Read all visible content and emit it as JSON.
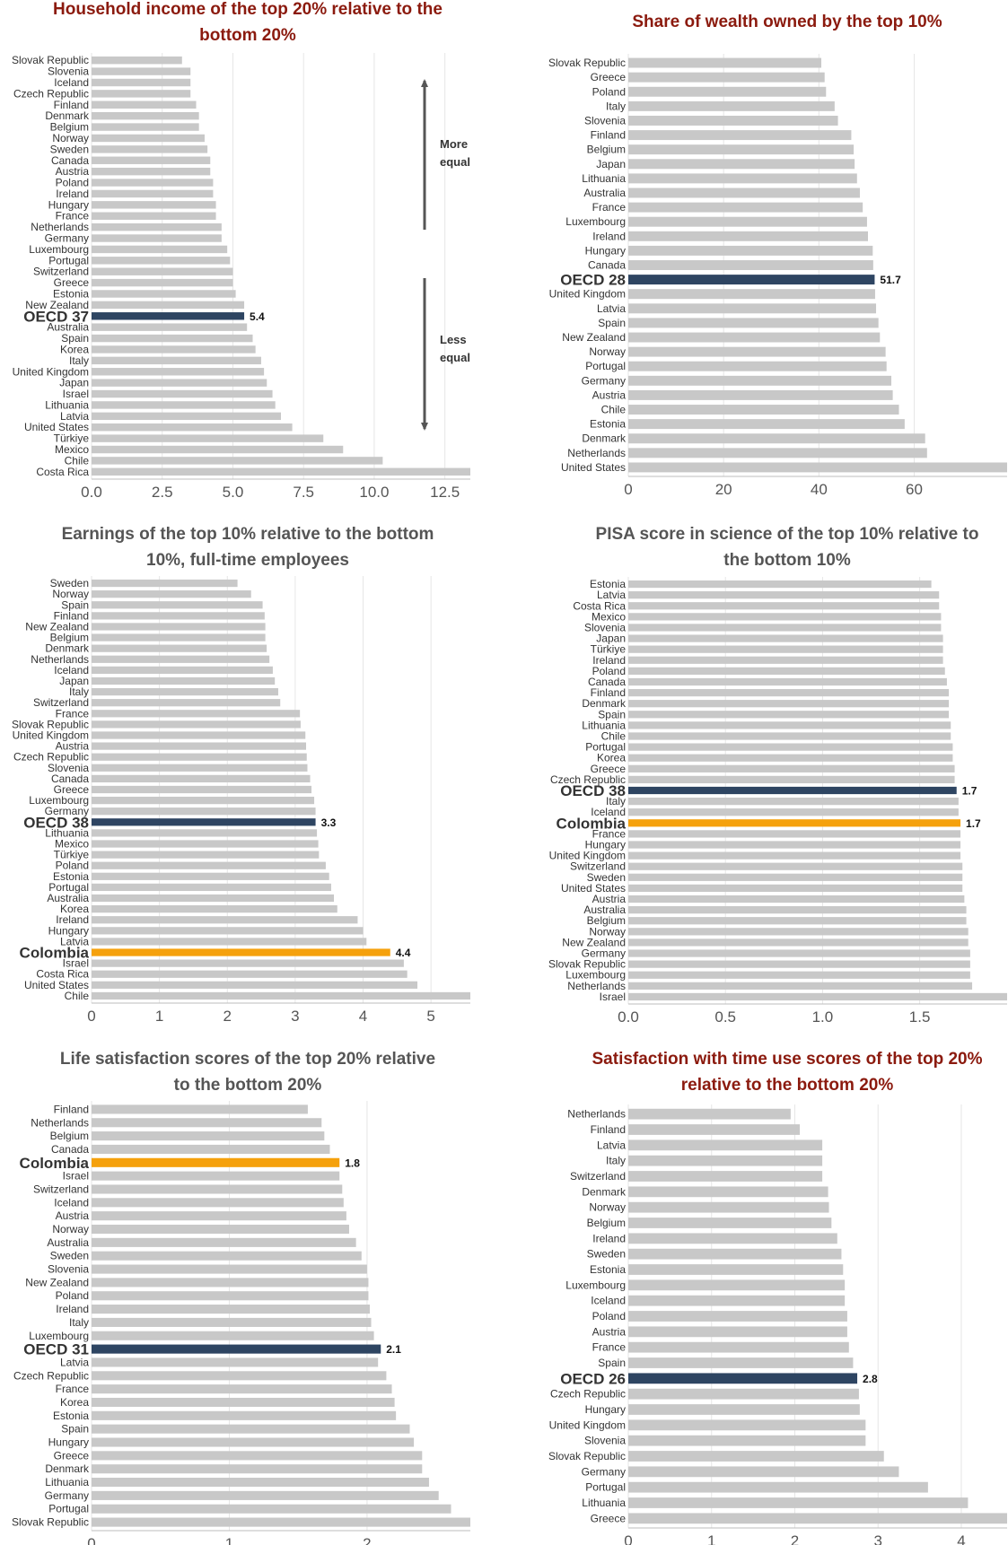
{
  "colors": {
    "bar": "#c8c8c8",
    "oecd": "#2e4562",
    "colombia": "#f5a10c",
    "title_red": "#8b1a0e",
    "title_gray": "#555555",
    "grid": "#e6e6e6"
  },
  "chart_data": [
    {
      "type": "bar",
      "orientation": "horizontal",
      "title_lines": [
        "Household income of the top 20% relative to the",
        "bottom 20%"
      ],
      "title_color": "red",
      "categories": [
        "Slovak Republic",
        "Slovenia",
        "Iceland",
        "Czech Republic",
        "Finland",
        "Denmark",
        "Belgium",
        "Norway",
        "Sweden",
        "Canada",
        "Austria",
        "Poland",
        "Ireland",
        "Hungary",
        "France",
        "Netherlands",
        "Germany",
        "Luxembourg",
        "Portugal",
        "Switzerland",
        "Greece",
        "Estonia",
        "New Zealand",
        "OECD 37",
        "Australia",
        "Spain",
        "Korea",
        "Italy",
        "United Kingdom",
        "Japan",
        "Israel",
        "Lithuania",
        "Latvia",
        "United States",
        "Türkiye",
        "Mexico",
        "Chile",
        "Costa Rica"
      ],
      "values": [
        3.2,
        3.5,
        3.5,
        3.5,
        3.7,
        3.8,
        3.8,
        4.0,
        4.1,
        4.2,
        4.2,
        4.3,
        4.3,
        4.4,
        4.4,
        4.6,
        4.6,
        4.8,
        4.9,
        5.0,
        5.0,
        5.1,
        5.4,
        5.4,
        5.5,
        5.7,
        5.8,
        6.0,
        6.1,
        6.2,
        6.4,
        6.5,
        6.7,
        7.1,
        8.2,
        8.9,
        10.3,
        13.4
      ],
      "highlights": {
        "OECD 37": "oecd"
      },
      "data_labels": {
        "OECD 37": "5.4"
      },
      "xlim": [
        0,
        13.4
      ],
      "xticks": [
        0.0,
        2.5,
        5.0,
        7.5,
        10.0,
        12.5
      ],
      "xtick_labels": [
        "0.0",
        "2.5",
        "5.0",
        "7.5",
        "10.0",
        "12.5"
      ],
      "annotations": {
        "top": [
          "More",
          "equal"
        ],
        "bottom": [
          "Less",
          "equal"
        ]
      }
    },
    {
      "type": "bar",
      "orientation": "horizontal",
      "title_lines": [
        "Share of wealth owned by the top 10%"
      ],
      "title_color": "red",
      "categories": [
        "Slovak Republic",
        "Greece",
        "Poland",
        "Italy",
        "Slovenia",
        "Finland",
        "Belgium",
        "Japan",
        "Lithuania",
        "Australia",
        "France",
        "Luxembourg",
        "Ireland",
        "Hungary",
        "Canada",
        "OECD 28",
        "United Kingdom",
        "Latvia",
        "Spain",
        "New Zealand",
        "Norway",
        "Portugal",
        "Germany",
        "Austria",
        "Chile",
        "Estonia",
        "Denmark",
        "Netherlands",
        "United States"
      ],
      "values": [
        40.5,
        41.2,
        41.5,
        43.3,
        44.0,
        46.8,
        47.3,
        47.5,
        48.0,
        48.6,
        49.2,
        50.1,
        50.3,
        51.3,
        51.4,
        51.7,
        51.8,
        52.0,
        52.5,
        52.8,
        54.0,
        54.2,
        55.2,
        55.5,
        56.8,
        58.0,
        62.3,
        62.7,
        79.5
      ],
      "highlights": {
        "OECD 28": "oecd"
      },
      "data_labels": {
        "OECD 28": "51.7"
      },
      "xlim": [
        0,
        79.5
      ],
      "xticks": [
        0,
        20,
        40,
        60
      ],
      "xtick_labels": [
        "0",
        "20",
        "40",
        "60"
      ]
    },
    {
      "type": "bar",
      "orientation": "horizontal",
      "title_lines": [
        "Earnings of the top 10% relative to the bottom",
        "10%, full-time employees"
      ],
      "title_color": "gray",
      "categories": [
        "Sweden",
        "Norway",
        "Spain",
        "Finland",
        "New Zealand",
        "Belgium",
        "Denmark",
        "Netherlands",
        "Iceland",
        "Japan",
        "Italy",
        "Switzerland",
        "France",
        "Slovak Republic",
        "United Kingdom",
        "Austria",
        "Czech Republic",
        "Slovenia",
        "Canada",
        "Greece",
        "Luxembourg",
        "Germany",
        "OECD 38",
        "Lithuania",
        "Mexico",
        "Türkiye",
        "Poland",
        "Estonia",
        "Portugal",
        "Australia",
        "Korea",
        "Ireland",
        "Hungary",
        "Latvia",
        "Colombia",
        "Israel",
        "Costa Rica",
        "United States",
        "Chile"
      ],
      "values": [
        2.15,
        2.35,
        2.52,
        2.55,
        2.56,
        2.56,
        2.58,
        2.62,
        2.67,
        2.7,
        2.75,
        2.78,
        3.07,
        3.08,
        3.15,
        3.16,
        3.17,
        3.18,
        3.22,
        3.24,
        3.28,
        3.3,
        3.3,
        3.32,
        3.34,
        3.35,
        3.45,
        3.5,
        3.53,
        3.57,
        3.62,
        3.92,
        4.0,
        4.05,
        4.4,
        4.6,
        4.65,
        4.8,
        5.58
      ],
      "highlights": {
        "OECD 38": "oecd",
        "Colombia": "colombia"
      },
      "data_labels": {
        "OECD 38": "3.3",
        "Colombia": "4.4"
      },
      "xlim": [
        0,
        5.58
      ],
      "xticks": [
        0,
        1,
        2,
        3,
        4,
        5
      ],
      "xtick_labels": [
        "0",
        "1",
        "2",
        "3",
        "4",
        "5"
      ]
    },
    {
      "type": "bar",
      "orientation": "horizontal",
      "title_lines": [
        "PISA score in science of the top 10% relative to",
        "the bottom 10%"
      ],
      "title_color": "gray",
      "categories": [
        "Estonia",
        "Latvia",
        "Costa Rica",
        "Mexico",
        "Slovenia",
        "Japan",
        "Türkiye",
        "Ireland",
        "Poland",
        "Canada",
        "Finland",
        "Denmark",
        "Spain",
        "Lithuania",
        "Chile",
        "Portugal",
        "Korea",
        "Greece",
        "Czech Republic",
        "OECD 38",
        "Italy",
        "Iceland",
        "Colombia",
        "France",
        "Hungary",
        "United Kingdom",
        "Switzerland",
        "Sweden",
        "United States",
        "Austria",
        "Australia",
        "Belgium",
        "Norway",
        "New Zealand",
        "Germany",
        "Slovak Republic",
        "Luxembourg",
        "Netherlands",
        "Israel"
      ],
      "values": [
        1.56,
        1.6,
        1.6,
        1.61,
        1.61,
        1.62,
        1.62,
        1.62,
        1.63,
        1.64,
        1.65,
        1.65,
        1.65,
        1.66,
        1.66,
        1.67,
        1.67,
        1.68,
        1.68,
        1.69,
        1.7,
        1.7,
        1.71,
        1.71,
        1.71,
        1.71,
        1.72,
        1.72,
        1.72,
        1.73,
        1.74,
        1.74,
        1.75,
        1.75,
        1.76,
        1.76,
        1.76,
        1.77,
        1.95
      ],
      "highlights": {
        "OECD 38": "oecd",
        "Colombia": "colombia"
      },
      "data_labels": {
        "OECD 38": "1.7",
        "Colombia": "1.7"
      },
      "xlim": [
        0,
        1.95
      ],
      "xticks": [
        0.0,
        0.5,
        1.0,
        1.5
      ],
      "xtick_labels": [
        "0.0",
        "0.5",
        "1.0",
        "1.5"
      ]
    },
    {
      "type": "bar",
      "orientation": "horizontal",
      "title_lines": [
        "Life satisfaction scores of the top 20% relative",
        "to the bottom 20%"
      ],
      "title_color": "gray",
      "categories": [
        "Finland",
        "Netherlands",
        "Belgium",
        "Canada",
        "Colombia",
        "Israel",
        "Switzerland",
        "Iceland",
        "Austria",
        "Norway",
        "Australia",
        "Sweden",
        "Slovenia",
        "New Zealand",
        "Poland",
        "Ireland",
        "Italy",
        "Luxembourg",
        "OECD 31",
        "Latvia",
        "Czech Republic",
        "France",
        "Korea",
        "Estonia",
        "Spain",
        "Hungary",
        "Greece",
        "Denmark",
        "Lithuania",
        "Germany",
        "Portugal",
        "Slovak Republic"
      ],
      "values": [
        1.57,
        1.67,
        1.69,
        1.73,
        1.8,
        1.8,
        1.82,
        1.83,
        1.85,
        1.87,
        1.92,
        1.96,
        2.0,
        2.01,
        2.01,
        2.02,
        2.03,
        2.05,
        2.1,
        2.08,
        2.14,
        2.18,
        2.2,
        2.21,
        2.31,
        2.34,
        2.4,
        2.4,
        2.45,
        2.52,
        2.61,
        2.75
      ],
      "highlights": {
        "OECD 31": "oecd",
        "Colombia": "colombia"
      },
      "data_labels": {
        "OECD 31": "2.1",
        "Colombia": "1.8"
      },
      "xlim": [
        0,
        2.75
      ],
      "xticks": [
        0,
        1,
        2
      ],
      "xtick_labels": [
        "0",
        "1",
        "2"
      ]
    },
    {
      "type": "bar",
      "orientation": "horizontal",
      "title_lines": [
        "Satisfaction with time use scores of the top 20%",
        "relative to the bottom 20%"
      ],
      "title_color": "red",
      "categories": [
        "Netherlands",
        "Finland",
        "Latvia",
        "Italy",
        "Switzerland",
        "Denmark",
        "Norway",
        "Belgium",
        "Ireland",
        "Sweden",
        "Estonia",
        "Luxembourg",
        "Iceland",
        "Poland",
        "Austria",
        "France",
        "Spain",
        "OECD 26",
        "Czech Republic",
        "Hungary",
        "United Kingdom",
        "Slovenia",
        "Slovak Republic",
        "Germany",
        "Portugal",
        "Lithuania",
        "Greece"
      ],
      "values": [
        1.95,
        2.06,
        2.33,
        2.33,
        2.33,
        2.4,
        2.41,
        2.44,
        2.51,
        2.56,
        2.58,
        2.6,
        2.6,
        2.63,
        2.63,
        2.65,
        2.7,
        2.75,
        2.77,
        2.78,
        2.85,
        2.85,
        3.07,
        3.25,
        3.6,
        4.08,
        4.55
      ],
      "highlights": {
        "OECD 26": "oecd"
      },
      "data_labels": {
        "OECD 26": "2.8"
      },
      "xlim": [
        0,
        4.55
      ],
      "xticks": [
        0,
        1,
        2,
        3,
        4
      ],
      "xtick_labels": [
        "0",
        "1",
        "2",
        "3",
        "4"
      ]
    }
  ]
}
